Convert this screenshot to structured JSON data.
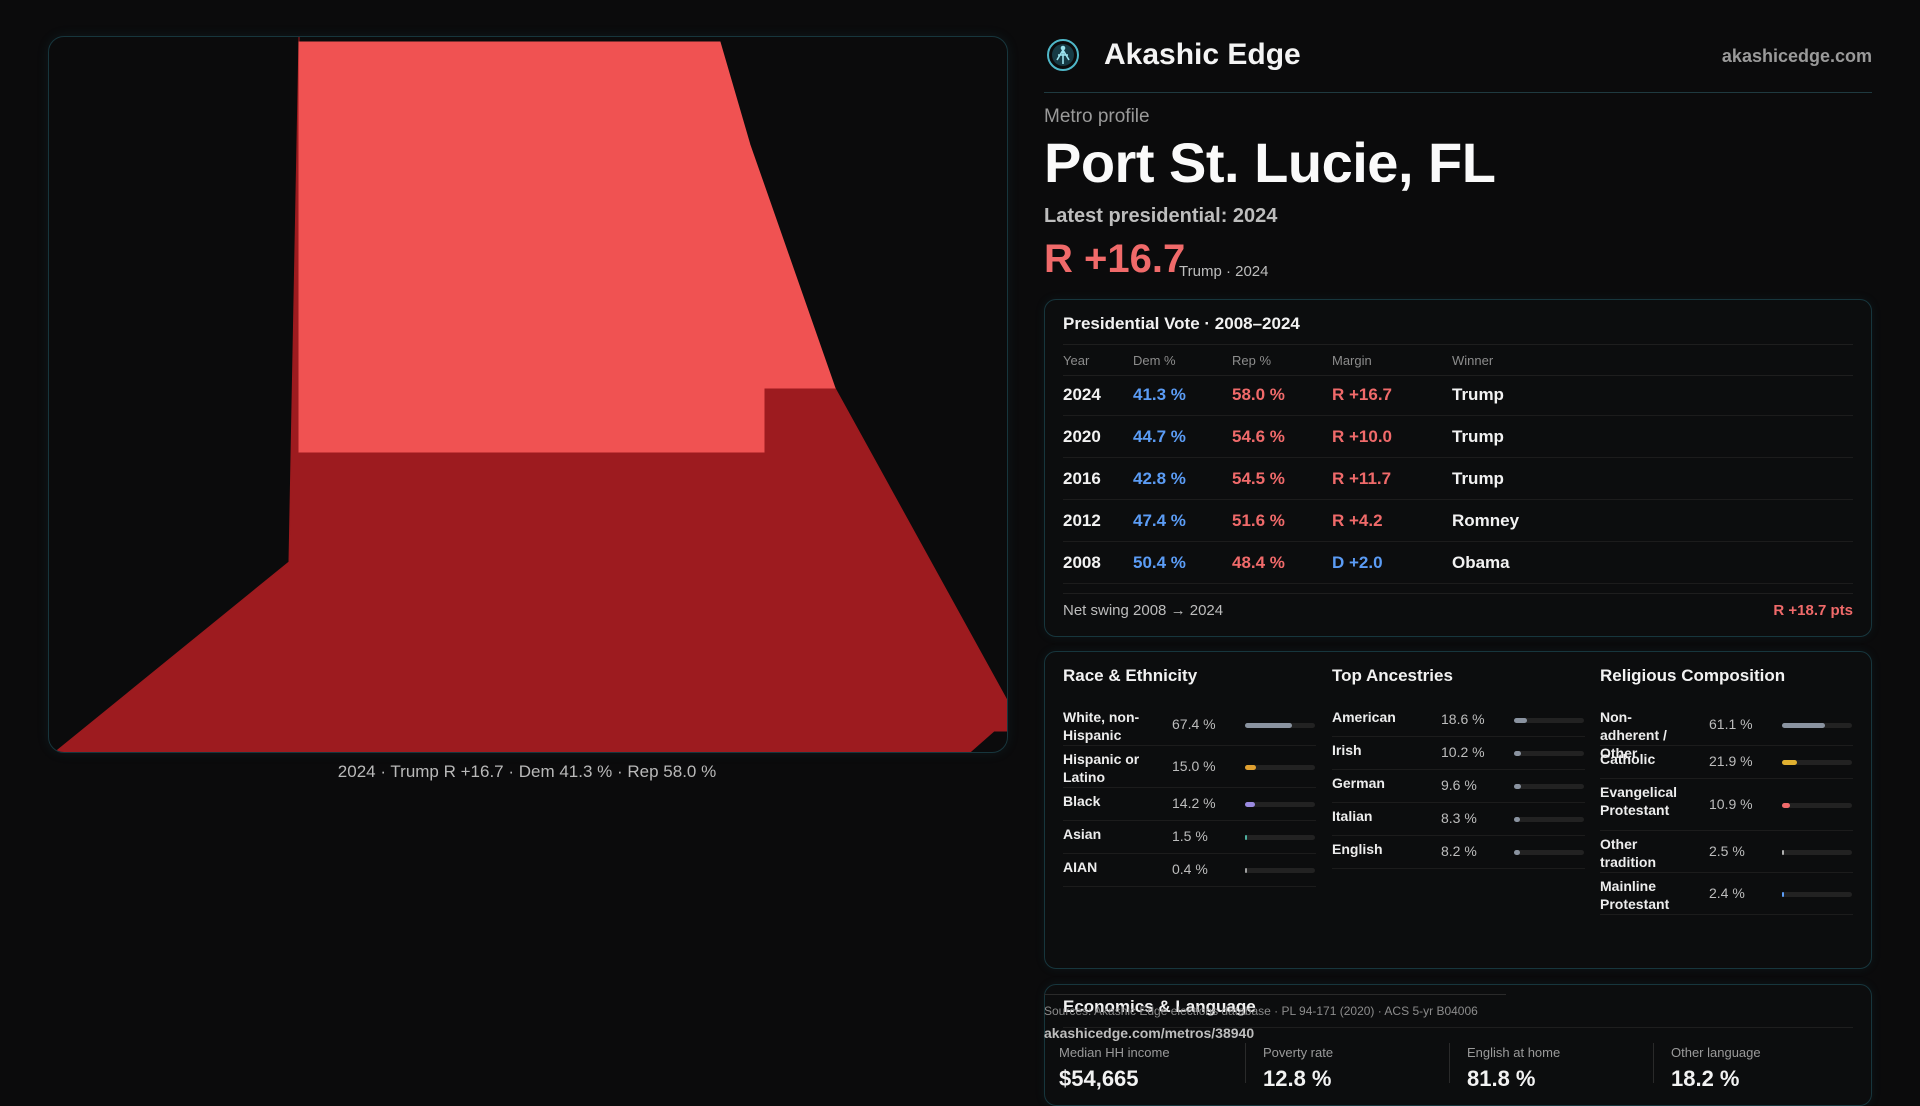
{
  "brand": {
    "name": "Akashic Edge",
    "site": "akashicedge.com"
  },
  "colors": {
    "rep_light": "#f05252",
    "rep_dark": "#9d1b1f",
    "rep_text": "#f06a6a",
    "dem_text": "#5b9cf5",
    "accent": "#17363d"
  },
  "map": {
    "caption": "2024 · Trump R +16.7 · Dem 41.3 % · Rep 58.0 %"
  },
  "profile": {
    "kicker": "Metro profile",
    "title": "Port St. Lucie, FL",
    "latest_label": "Latest presidential: 2024",
    "margin": "R +16.7",
    "margin_sub": "Trump · 2024"
  },
  "vote": {
    "title": "Presidential Vote · 2008–2024",
    "headers": {
      "year": "Year",
      "dem": "Dem %",
      "rep": "Rep %",
      "margin": "Margin",
      "winner": "Winner"
    },
    "rows": [
      {
        "year": "2024",
        "dem": "41.3 %",
        "rep": "58.0 %",
        "margin": "R +16.7",
        "winner": "Trump"
      },
      {
        "year": "2020",
        "dem": "44.7 %",
        "rep": "54.6 %",
        "margin": "R +10.0",
        "winner": "Trump"
      },
      {
        "year": "2016",
        "dem": "42.8 %",
        "rep": "54.5 %",
        "margin": "R +11.7",
        "winner": "Trump"
      },
      {
        "year": "2012",
        "dem": "47.4 %",
        "rep": "51.6 %",
        "margin": "R +4.2",
        "winner": "Romney"
      },
      {
        "year": "2008",
        "dem": "50.4 %",
        "rep": "48.4 %",
        "margin": "D +2.0",
        "winner": "Obama"
      }
    ],
    "swing_label": "Net swing 2008 → 2024",
    "swing_value": "R +18.7 pts"
  },
  "race": {
    "title": "Race & Ethnicity",
    "rows": [
      {
        "label": "White, non-Hispanic",
        "pct": "67.4 %",
        "value": 0.674,
        "color": "#8a93a0"
      },
      {
        "label": "Hispanic or Latino",
        "pct": "15.0 %",
        "value": 0.15,
        "color": "#e0a030"
      },
      {
        "label": "Black",
        "pct": "14.2 %",
        "value": 0.142,
        "color": "#9a8ae0"
      },
      {
        "label": "Asian",
        "pct": "1.5 %",
        "value": 0.015,
        "color": "#4fb0a0"
      },
      {
        "label": "AIAN",
        "pct": "0.4 %",
        "value": 0.004,
        "color": "#a0a0a0"
      }
    ]
  },
  "ancestry": {
    "title": "Top Ancestries",
    "rows": [
      {
        "label": "American",
        "pct": "18.6 %",
        "value": 0.186,
        "color": "#8a93a0"
      },
      {
        "label": "Irish",
        "pct": "10.2 %",
        "value": 0.102,
        "color": "#8a93a0"
      },
      {
        "label": "German",
        "pct": "9.6 %",
        "value": 0.096,
        "color": "#8a93a0"
      },
      {
        "label": "Italian",
        "pct": "8.3 %",
        "value": 0.083,
        "color": "#8a93a0"
      },
      {
        "label": "English",
        "pct": "8.2 %",
        "value": 0.082,
        "color": "#8a93a0"
      }
    ]
  },
  "religion": {
    "title": "Religious Composition",
    "rows": [
      {
        "label": "Non-adherent / Other",
        "pct": "61.1 %",
        "value": 0.611,
        "color": "#8a93a0"
      },
      {
        "label": "Catholic",
        "pct": "21.9 %",
        "value": 0.219,
        "color": "#e0b030"
      },
      {
        "label": "Evangelical Protestant",
        "pct": "10.9 %",
        "value": 0.109,
        "color": "#f06a6a"
      },
      {
        "label": "Other tradition",
        "pct": "2.5 %",
        "value": 0.025,
        "color": "#b0b0b0"
      },
      {
        "label": "Mainline Protestant",
        "pct": "2.4 %",
        "value": 0.024,
        "color": "#5b9cf5"
      }
    ]
  },
  "economics": {
    "title": "Economics & Language",
    "items": [
      {
        "label": "Median HH income",
        "value": "$54,665"
      },
      {
        "label": "Poverty rate",
        "value": "12.8 %"
      },
      {
        "label": "English at home",
        "value": "81.8 %"
      },
      {
        "label": "Other language",
        "value": "18.2 %"
      }
    ]
  },
  "footer": {
    "sources": "Sources: Akashic Edge elections database · PL 94-171 (2020) · ACS 5-yr B04006",
    "permalink": "akashicedge.com/metros/38940"
  }
}
